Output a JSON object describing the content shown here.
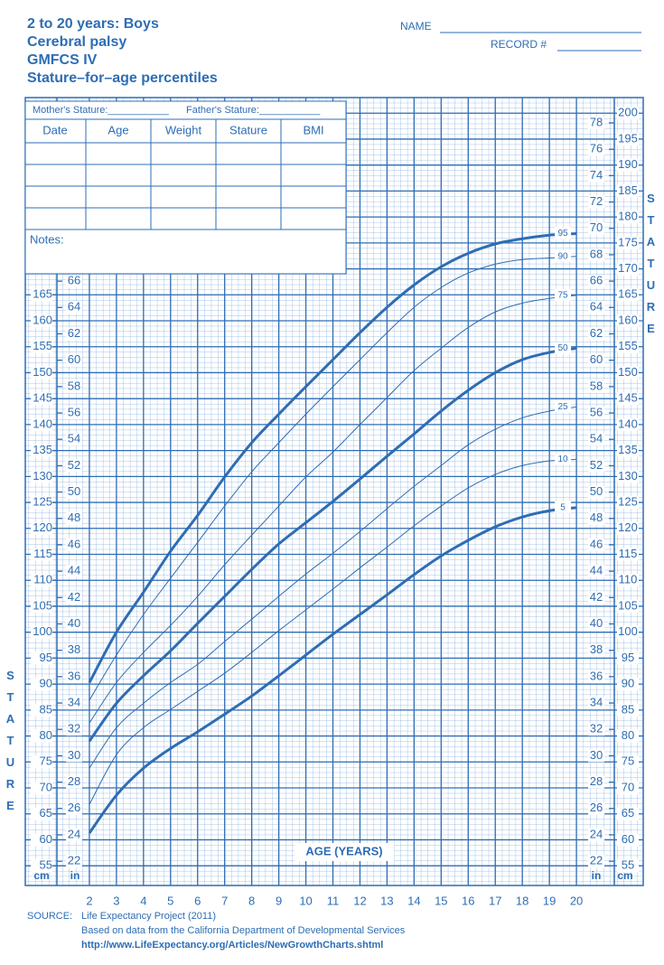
{
  "header": {
    "title_lines": [
      "2 to 20 years: Boys",
      "Cerebral palsy",
      "GMFCS IV",
      "Stature–for–age percentiles"
    ],
    "name_label": "NAME",
    "record_label": "RECORD #"
  },
  "form": {
    "mother": "Mother's Stature:___________",
    "father": "Father's Stature:___________",
    "columns": [
      "Date",
      "Age",
      "Weight",
      "Stature",
      "BMI"
    ],
    "notes": "Notes:"
  },
  "chart_data": {
    "type": "line",
    "x_label": "AGE (YEARS)",
    "y_label": "STATURE",
    "y_unit": "cm",
    "y2_unit": "in",
    "x": [
      2,
      3,
      4,
      5,
      6,
      7,
      8,
      9,
      10,
      11,
      12,
      13,
      14,
      15,
      16,
      17,
      18,
      19,
      20
    ],
    "xlim": [
      0.8,
      21.4
    ],
    "xticks": [
      2,
      3,
      4,
      5,
      6,
      7,
      8,
      9,
      10,
      11,
      12,
      13,
      14,
      15,
      16,
      17,
      18,
      19,
      20
    ],
    "ylim": [
      51.2,
      203
    ],
    "yticks": [
      55,
      60,
      65,
      70,
      75,
      80,
      85,
      90,
      95,
      100,
      105,
      110,
      115,
      120,
      125,
      130,
      135,
      140,
      145,
      150,
      155,
      160,
      165,
      170,
      175,
      180,
      185,
      190,
      195,
      200
    ],
    "y2lim": [
      20.16,
      79.92
    ],
    "y2ticks": [
      22,
      24,
      26,
      28,
      30,
      32,
      34,
      36,
      38,
      40,
      42,
      44,
      46,
      48,
      50,
      52,
      54,
      56,
      58,
      60,
      62,
      64,
      66,
      68,
      70,
      72,
      74,
      76,
      78
    ],
    "grid": true,
    "series": [
      {
        "name": "95",
        "color": "#2e6db4",
        "linewidth": 3,
        "values": [
          90.3,
          100,
          107.7,
          115.6,
          122.5,
          129.9,
          136.5,
          142,
          147.3,
          152.5,
          157.7,
          162.6,
          166.9,
          170.4,
          173,
          174.8,
          175.8,
          176.5,
          176.8
        ]
      },
      {
        "name": "90",
        "color": "#2e6db4",
        "linewidth": 1,
        "values": [
          86.9,
          95.6,
          103.4,
          110.4,
          117.3,
          124.3,
          130.9,
          136.5,
          142,
          147.3,
          152.5,
          157.7,
          162.6,
          166.4,
          169.2,
          170.9,
          171.8,
          172.1,
          172.4
        ]
      },
      {
        "name": "75",
        "color": "#2e6db4",
        "linewidth": 1,
        "values": [
          82.5,
          90.3,
          96.1,
          101.3,
          106.9,
          113,
          118.7,
          124.3,
          129.9,
          134.7,
          140,
          145.2,
          150.4,
          154.7,
          158.7,
          161.7,
          163.4,
          164.3,
          164.9
        ]
      },
      {
        "name": "50",
        "color": "#2e6db4",
        "linewidth": 3,
        "values": [
          79,
          86.3,
          91.6,
          96.4,
          101.7,
          106.9,
          112.1,
          117,
          121.1,
          125.2,
          129.5,
          133.9,
          138.2,
          142.6,
          146.6,
          150,
          152.5,
          153.9,
          154.7
        ]
      },
      {
        "name": "25",
        "color": "#2e6db4",
        "linewidth": 1,
        "values": [
          73.8,
          81.6,
          86.3,
          90.3,
          93.8,
          98.2,
          102.5,
          106.9,
          111.2,
          115.2,
          119.4,
          123.8,
          128.1,
          132.1,
          136.1,
          139.1,
          141.3,
          142.6,
          143.4
        ]
      },
      {
        "name": "10",
        "color": "#2e6db4",
        "linewidth": 1,
        "values": [
          66.8,
          76.4,
          81.6,
          85.1,
          88.6,
          92.1,
          96.1,
          100.3,
          104.3,
          108.3,
          112.4,
          116.4,
          120.5,
          124.3,
          127.8,
          130.4,
          132.1,
          133,
          133.3
        ]
      },
      {
        "name": "5",
        "color": "#2e6db4",
        "linewidth": 3,
        "values": [
          61.3,
          68.6,
          73.8,
          77.6,
          80.8,
          84.2,
          87.7,
          91.6,
          95.6,
          99.6,
          103.4,
          107.2,
          111.1,
          114.7,
          117.7,
          120.3,
          122.2,
          123.4,
          124
        ]
      }
    ]
  },
  "source": {
    "label": "SOURCE:",
    "lines": [
      "Life Expectancy Project (2011)",
      "Based on data from the California Department of Developmental Services",
      "http://www.LifeExpectancy.org/Articles/NewGrowthCharts.shtml"
    ]
  }
}
